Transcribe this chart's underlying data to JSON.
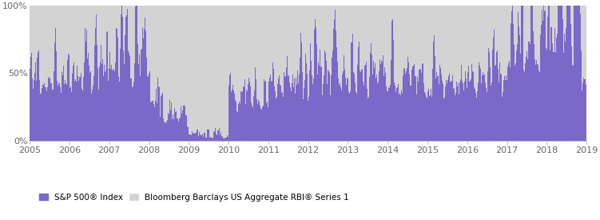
{
  "sp500_color": "#7B68C8",
  "agg_color": "#D3D3D3",
  "background_color": "#FFFFFF",
  "ylim": [
    0,
    1
  ],
  "yticks": [
    0.0,
    0.5,
    1.0
  ],
  "ytick_labels": [
    "0%",
    "50%",
    "100%"
  ],
  "legend_sp500": "S&P 500® Index",
  "legend_agg": "Bloomberg Barclays US Aggregate RBI® Series 1"
}
